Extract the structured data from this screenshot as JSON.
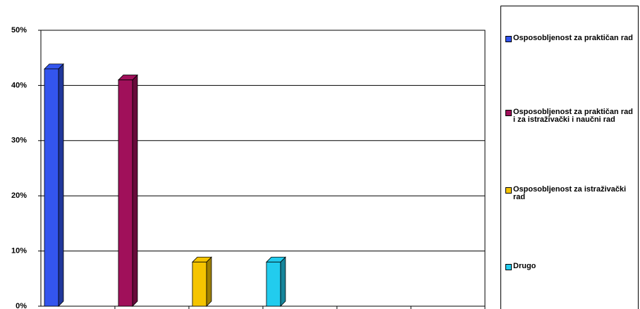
{
  "chart_data": {
    "type": "bar",
    "categories": [
      null,
      null,
      null,
      null,
      null,
      null
    ],
    "series": [
      {
        "name": "Osposobljenost za praktičan rad",
        "color": "#3355ee",
        "values": [
          43,
          null,
          null,
          null,
          null,
          null
        ]
      },
      {
        "name": "Osposobljenost za praktičan rad i za istraživački i naučni rad",
        "color": "#a0105a",
        "values": [
          null,
          41,
          null,
          null,
          null,
          null
        ]
      },
      {
        "name": "Osposobljenost za istraživački rad",
        "color": "#f5c400",
        "values": [
          null,
          null,
          8,
          null,
          null,
          null
        ]
      },
      {
        "name": "Drugo",
        "color": "#22ccee",
        "values": [
          null,
          null,
          null,
          8,
          null,
          null
        ]
      }
    ],
    "ylim": [
      0,
      50
    ],
    "yticks": [
      {
        "value": 0,
        "label": "0%"
      },
      {
        "value": 10,
        "label": "10%"
      },
      {
        "value": 20,
        "label": "20%"
      },
      {
        "value": 30,
        "label": "30%"
      },
      {
        "value": 40,
        "label": "40%"
      },
      {
        "value": 50,
        "label": "50%"
      }
    ],
    "grid": true,
    "legend": "right"
  }
}
